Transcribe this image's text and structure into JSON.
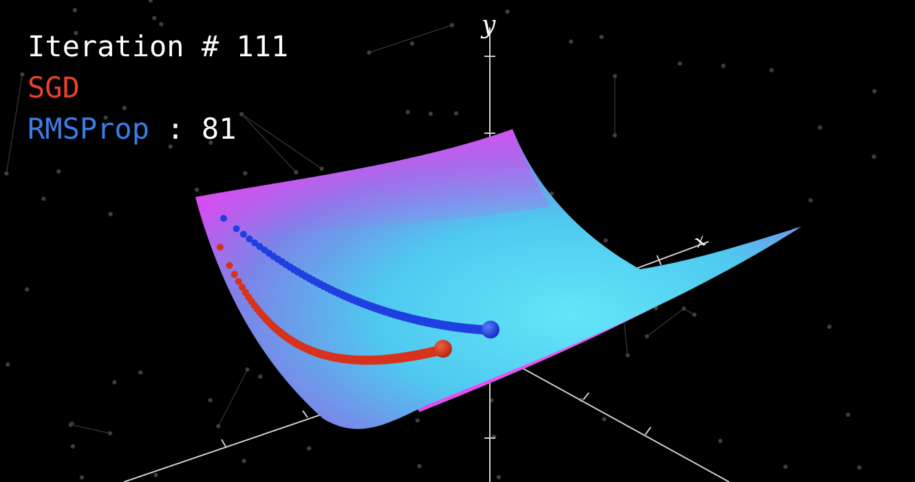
{
  "hud": {
    "iteration_label": "Iteration #",
    "iteration_value": "111",
    "optimizers": [
      {
        "name": "SGD",
        "color": "#e8412c",
        "count": ""
      },
      {
        "name": "RMSProp",
        "color": "#3a7de6",
        "count": "81",
        "separator": ":"
      }
    ]
  },
  "axes": {
    "y_label": "y",
    "x_label": "x"
  },
  "colors": {
    "background": "#000000",
    "surface_top": "#d94ef0",
    "surface_center": "#5fe3f7",
    "sgd_path": "#d8321c",
    "rmsprop_path": "#1f3fe0",
    "axis": "#cfcfcf",
    "constellation": "#3a3a3a"
  }
}
